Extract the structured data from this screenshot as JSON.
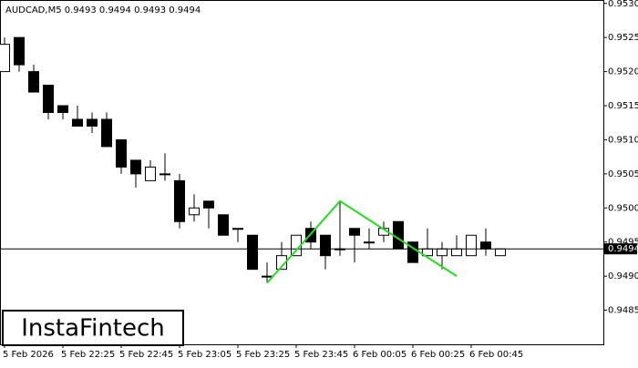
{
  "chart_data": {
    "type": "candlestick",
    "title": "AUDCAD,M5  0.9493 0.9494 0.9493 0.9494",
    "categories": [
      "5 Feb 2026",
      null,
      null,
      null,
      "5 Feb 22:25",
      null,
      null,
      null,
      "5 Feb 22:45",
      null,
      null,
      null,
      "5 Feb 23:05",
      null,
      null,
      null,
      "5 Feb 23:25",
      null,
      null,
      null,
      "5 Feb 23:45",
      null,
      null,
      null,
      "6 Feb 00:05",
      null,
      null,
      null,
      "6 Feb 00:25",
      null,
      null,
      null,
      "6 Feb 00:45",
      null,
      null
    ],
    "open": [
      0.952,
      0.9525,
      0.952,
      0.9518,
      0.9515,
      0.9513,
      0.9513,
      0.9513,
      0.951,
      0.9507,
      0.9504,
      0.9505,
      0.9504,
      0.9499,
      0.9501,
      0.9499,
      0.9497,
      0.9496,
      0.949,
      0.9491,
      0.9493,
      0.9497,
      0.9496,
      0.9494,
      0.9497,
      0.9495,
      0.9496,
      0.9498,
      0.9495,
      0.9493,
      0.9493,
      0.9493,
      0.9493,
      0.9495,
      0.9493
    ],
    "high": [
      0.9525,
      0.9525,
      0.9521,
      0.9518,
      0.9515,
      0.9515,
      0.9514,
      0.9514,
      0.951,
      0.9507,
      0.9507,
      0.9508,
      0.9505,
      0.9502,
      0.9501,
      0.9499,
      0.9497,
      0.9496,
      0.9492,
      0.9495,
      0.9496,
      0.9498,
      0.9496,
      0.9501,
      0.9497,
      0.9497,
      0.9498,
      0.9498,
      0.9495,
      0.9497,
      0.9495,
      0.9496,
      0.9496,
      0.9497,
      0.9494
    ],
    "low": [
      0.952,
      0.952,
      0.9517,
      0.9513,
      0.9513,
      0.9512,
      0.9511,
      0.9509,
      0.9505,
      0.9503,
      0.9504,
      0.9504,
      0.9497,
      0.9498,
      0.9497,
      0.9496,
      0.9495,
      0.9491,
      0.9489,
      0.9491,
      0.9493,
      0.9494,
      0.9491,
      0.9493,
      0.9492,
      0.9494,
      0.9495,
      0.9494,
      0.9492,
      0.9493,
      0.9491,
      0.9493,
      0.9493,
      0.9493,
      0.9493
    ],
    "close": [
      0.9524,
      0.9521,
      0.9517,
      0.9514,
      0.9514,
      0.9512,
      0.9512,
      0.9509,
      0.9506,
      0.9505,
      0.9506,
      0.9505,
      0.9498,
      0.95,
      0.95,
      0.9496,
      0.9497,
      0.9491,
      0.949,
      0.9493,
      0.9496,
      0.9495,
      0.9493,
      0.9494,
      0.9496,
      0.9495,
      0.9497,
      0.9494,
      0.9492,
      0.9494,
      0.9494,
      0.9494,
      0.9496,
      0.9494,
      0.9494
    ],
    "up_color": "#ffffff",
    "down_color": "#000000",
    "ylim": [
      0.948,
      0.95305
    ],
    "yticks": [
      0.9485,
      {
        "value": 0.949,
        "label": "0.9490"
      },
      0.9495,
      {
        "value": 0.95,
        "label": "0.9500"
      },
      0.9505,
      {
        "value": 0.951,
        "label": "0.9510"
      },
      0.9515,
      {
        "value": 0.952,
        "label": "0.9520"
      },
      0.9525,
      {
        "value": 0.953,
        "label": "0.9530"
      }
    ],
    "last_price": {
      "value": 0.9494,
      "label": "0.9494"
    },
    "pattern": {
      "color": "#22dd22",
      "at": [
        18,
        23,
        31
      ],
      "values": [
        0.9489,
        0.9501,
        0.949
      ]
    },
    "logo": "InstaFintech"
  }
}
